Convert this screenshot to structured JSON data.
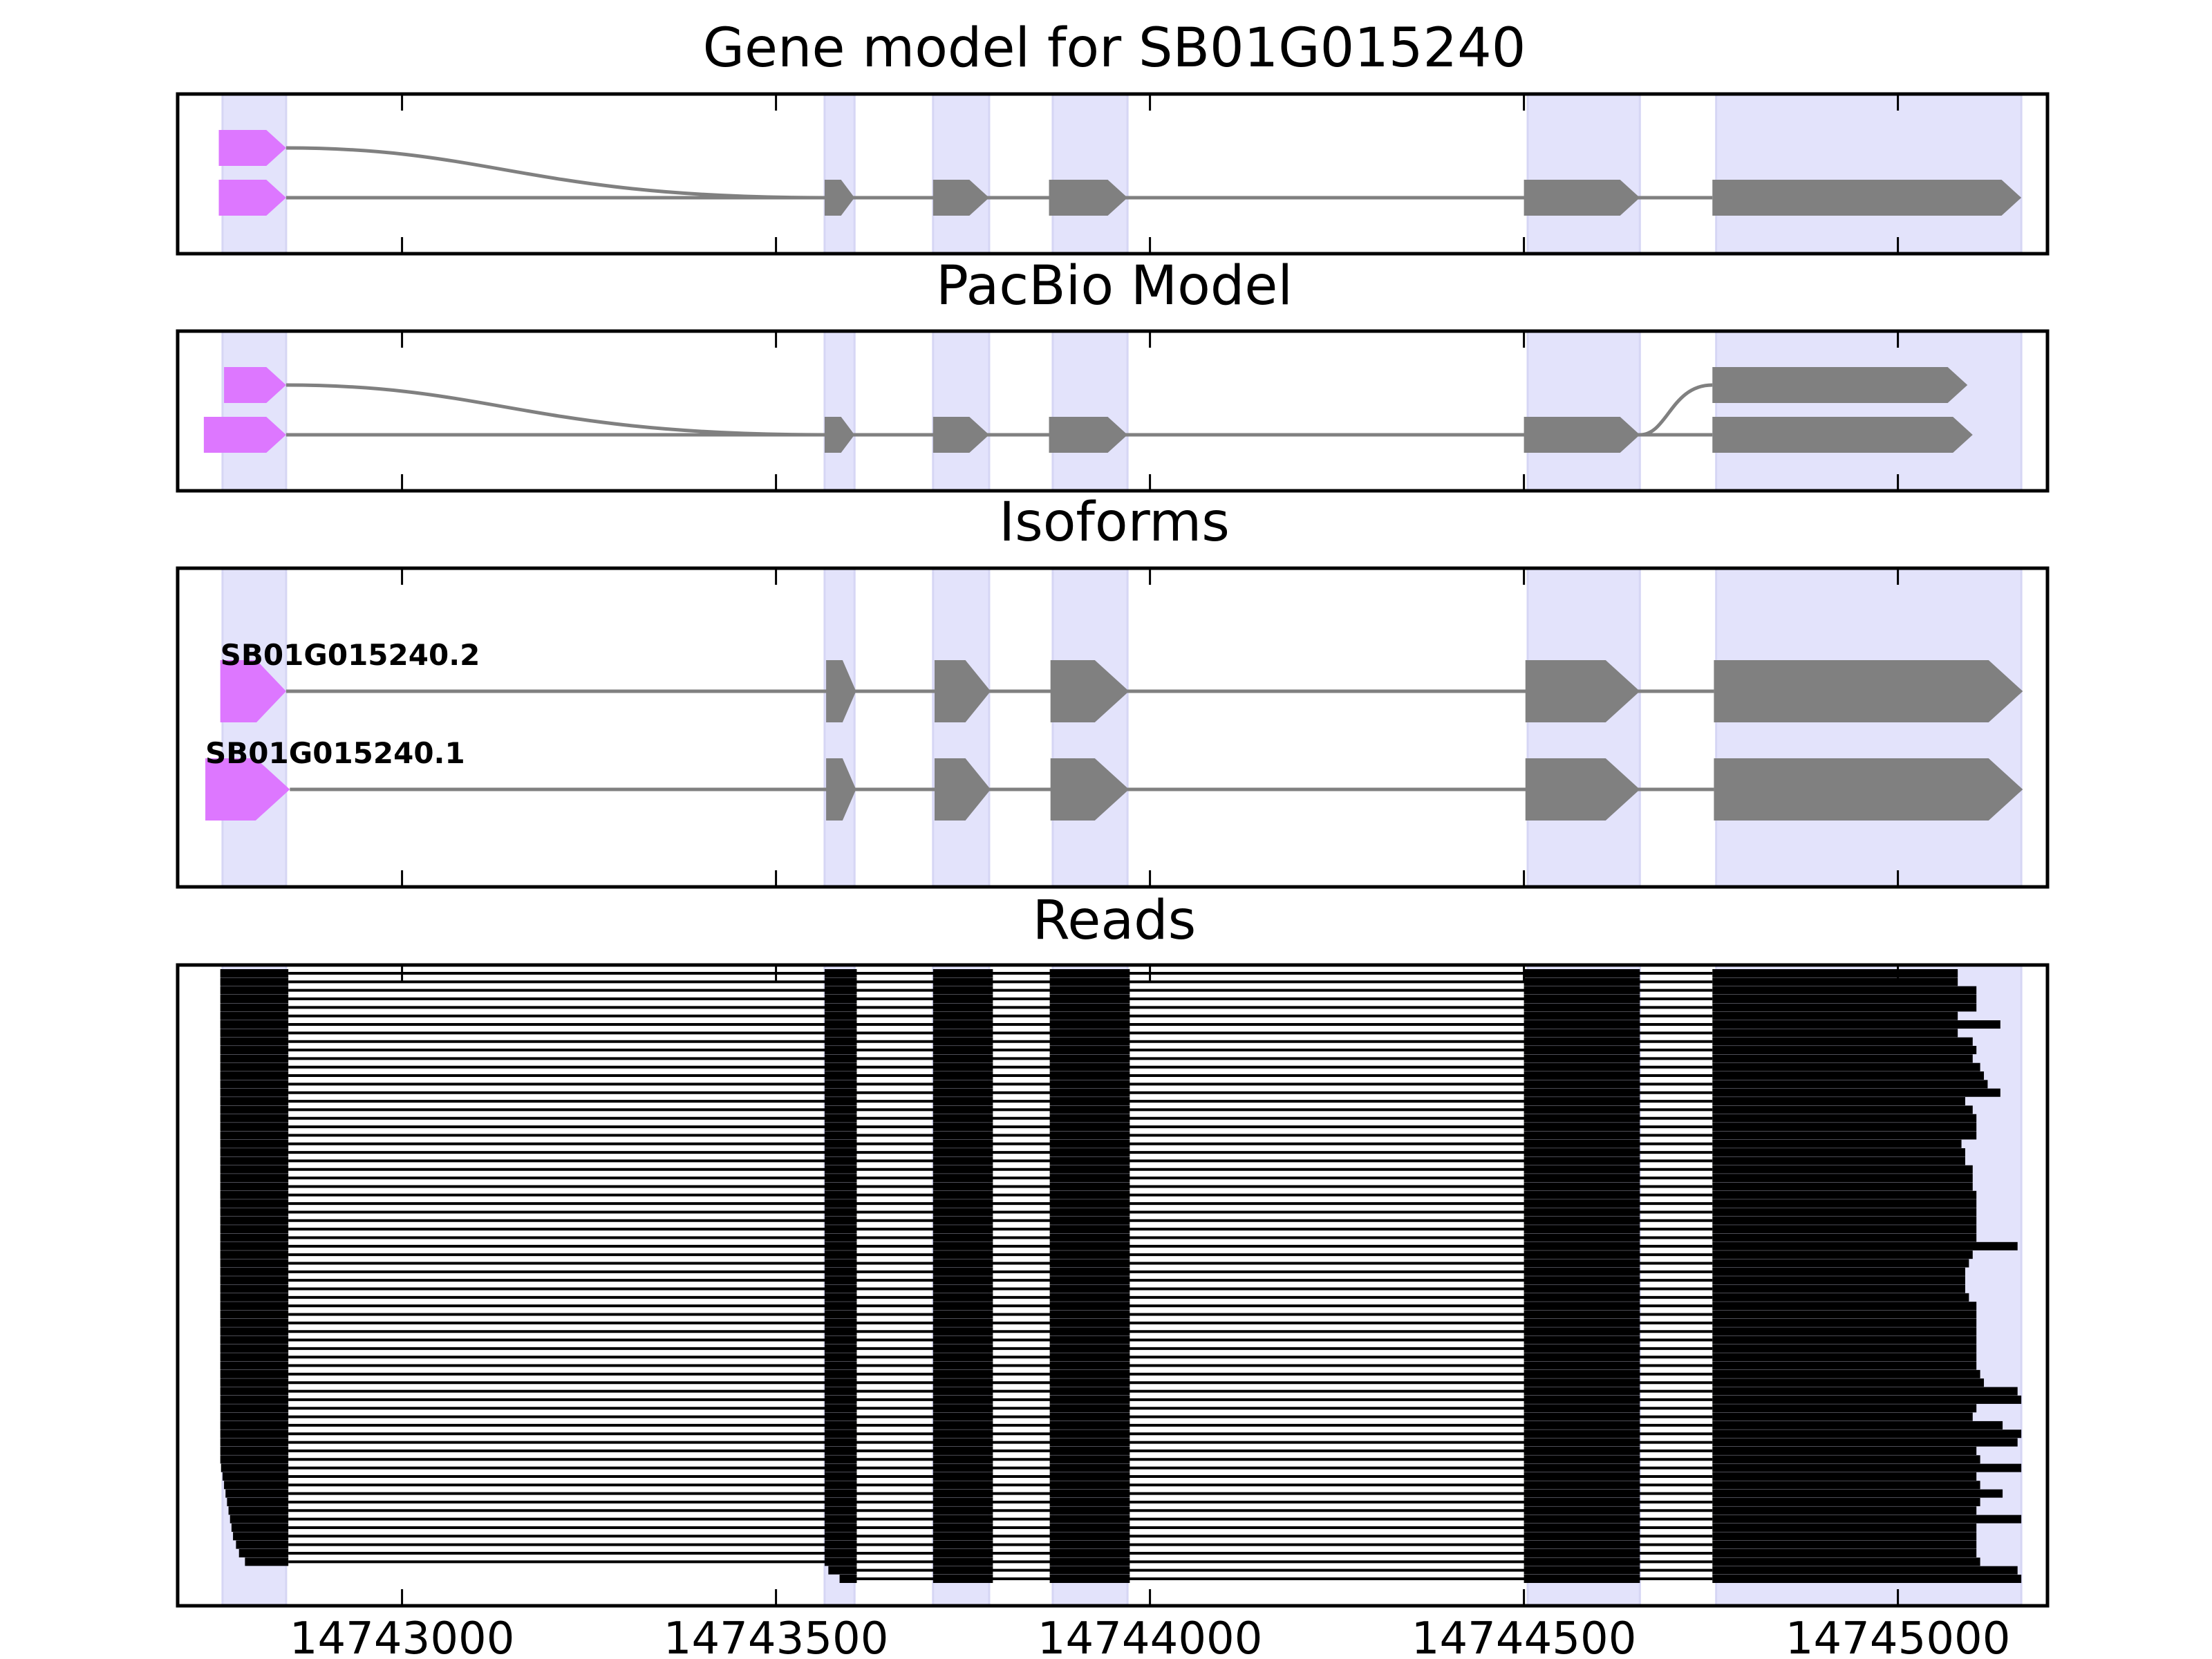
{
  "figure": {
    "background": "#ffffff",
    "colors": {
      "exon": "#808080",
      "first_exon": "#dd77ff",
      "intron": "#808080",
      "highlight": "#e3e3fb",
      "read": "#000000",
      "frame": "#000000"
    }
  },
  "chart_data": [
    {
      "panel": "gene_model",
      "type": "gene_structure",
      "title": "Gene model for SB01G015240",
      "xlim": [
        14742700,
        14745200
      ],
      "highlight_regions": [
        [
          14742760,
          14742845
        ],
        [
          14743565,
          14743605
        ],
        [
          14743710,
          14743785
        ],
        [
          14743870,
          14743970
        ],
        [
          14744505,
          14744655
        ],
        [
          14744757,
          14745165
        ]
      ],
      "transcripts": [
        {
          "row": 0,
          "exons": [
            [
              14742755,
              14742845
            ],
            [
              14743565,
              14743605
            ],
            [
              14743710,
              14743785
            ],
            [
              14743865,
              14743970
            ],
            [
              14744500,
              14744655
            ],
            [
              14744752,
              14745165
            ]
          ],
          "first_exon_alt": [
            14742755,
            14742845
          ],
          "alt_row": 1
        },
        {
          "row": 1,
          "exons": [
            [
              14742755,
              14742845
            ],
            [
              14743565,
              14743605
            ],
            [
              14743710,
              14743785
            ],
            [
              14743865,
              14743970
            ],
            [
              14744500,
              14744655
            ],
            [
              14744752,
              14745165
            ]
          ]
        }
      ]
    },
    {
      "panel": "pacbio_model",
      "type": "gene_structure",
      "title": "PacBio Model",
      "xlim": [
        14742700,
        14745200
      ],
      "highlight_regions": [
        [
          14742760,
          14742845
        ],
        [
          14743565,
          14743605
        ],
        [
          14743710,
          14743785
        ],
        [
          14743870,
          14743970
        ],
        [
          14744505,
          14744655
        ],
        [
          14744757,
          14745165
        ]
      ],
      "transcripts": [
        {
          "row": 1,
          "exons": [
            [
              14742735,
              14742845
            ],
            [
              14743565,
              14743605
            ],
            [
              14743710,
              14743785
            ],
            [
              14743865,
              14743970
            ],
            [
              14744500,
              14744655
            ],
            [
              14744752,
              14745100
            ]
          ]
        }
      ],
      "alt_first_exon": [
        14742762,
        14742845
      ],
      "alt_last_exon": [
        14744752,
        14745093
      ]
    },
    {
      "panel": "isoforms",
      "type": "gene_structure",
      "title": "Isoforms",
      "xlim": [
        14742700,
        14745200
      ],
      "highlight_regions": [
        [
          14742760,
          14742845
        ],
        [
          14743565,
          14743605
        ],
        [
          14743710,
          14743785
        ],
        [
          14743870,
          14743970
        ],
        [
          14744505,
          14744655
        ],
        [
          14744757,
          14745165
        ]
      ],
      "transcripts": [
        {
          "label": "SB01G015240.2",
          "exons": [
            [
              14742757,
              14742845
            ],
            [
              14743567,
              14743607
            ],
            [
              14743712,
              14743787
            ],
            [
              14743867,
              14743972
            ],
            [
              14744502,
              14744655
            ],
            [
              14744754,
              14745167
            ]
          ]
        },
        {
          "label": "SB01G015240.1",
          "exons": [
            [
              14742737,
              14742850
            ],
            [
              14743567,
              14743607
            ],
            [
              14743712,
              14743787
            ],
            [
              14743867,
              14743972
            ],
            [
              14744502,
              14744655
            ],
            [
              14744754,
              14745167
            ]
          ]
        }
      ]
    },
    {
      "panel": "reads",
      "type": "read_alignments",
      "title": "Reads",
      "xlim": [
        14742700,
        14745200
      ],
      "xticks": [
        14743000,
        14743500,
        14744000,
        14744500,
        14745000
      ],
      "xtick_labels": [
        "14743000",
        "14743500",
        "14744000",
        "14744500",
        "14745000"
      ],
      "highlight_regions": [
        [
          14742760,
          14742845
        ],
        [
          14743565,
          14743605
        ],
        [
          14743710,
          14743785
        ],
        [
          14743870,
          14743970
        ],
        [
          14744505,
          14744655
        ],
        [
          14744757,
          14745165
        ]
      ],
      "read_count": 72,
      "read_blocks": [
        [
          14742757,
          14742848
        ],
        [
          14743565,
          14743608
        ],
        [
          14743710,
          14743790
        ],
        [
          14743866,
          14743973
        ],
        [
          14744500,
          14744655
        ],
        [
          14744752,
          14745080
        ]
      ],
      "read_ends": [
        14745080,
        14745080,
        14745105,
        14745105,
        14745105,
        14745080,
        14745137,
        14745080,
        14745100,
        14745105,
        14745100,
        14745110,
        14745115,
        14745120,
        14745137,
        14745090,
        14745100,
        14745105,
        14745105,
        14745105,
        14745085,
        14745090,
        14745090,
        14745100,
        14745100,
        14745100,
        14745105,
        14745105,
        14745105,
        14745105,
        14745105,
        14745105,
        14745160,
        14745100,
        14745095,
        14745090,
        14745090,
        14745090,
        14745095,
        14745105,
        14745105,
        14745105,
        14745105,
        14745105,
        14745105,
        14745105,
        14745105,
        14745110,
        14745115,
        14745160,
        14745165,
        14745105,
        14745100,
        14745140,
        14745165,
        14745160,
        14745105,
        14745110,
        14745165,
        14745105,
        14745110,
        14745140,
        14745110,
        14745105,
        14745165,
        14745105,
        14745105,
        14745105,
        14745105,
        14745110,
        14745160,
        14745165
      ],
      "read_starts": [
        14742757,
        14742757,
        14742757,
        14742757,
        14742757,
        14742757,
        14742757,
        14742757,
        14742757,
        14742757,
        14742757,
        14742757,
        14742757,
        14742757,
        14742757,
        14742757,
        14742757,
        14742757,
        14742757,
        14742757,
        14742757,
        14742757,
        14742757,
        14742757,
        14742757,
        14742757,
        14742757,
        14742757,
        14742757,
        14742757,
        14742757,
        14742757,
        14742757,
        14742757,
        14742757,
        14742757,
        14742757,
        14742757,
        14742757,
        14742757,
        14742757,
        14742757,
        14742757,
        14742757,
        14742757,
        14742757,
        14742757,
        14742757,
        14742757,
        14742757,
        14742757,
        14742757,
        14742757,
        14742757,
        14742757,
        14742757,
        14742757,
        14742757,
        14742758,
        14742760,
        14742762,
        14742764,
        14742766,
        14742768,
        14742770,
        14742772,
        14742774,
        14742778,
        14742782,
        14742790,
        14743570,
        14743585
      ]
    }
  ]
}
